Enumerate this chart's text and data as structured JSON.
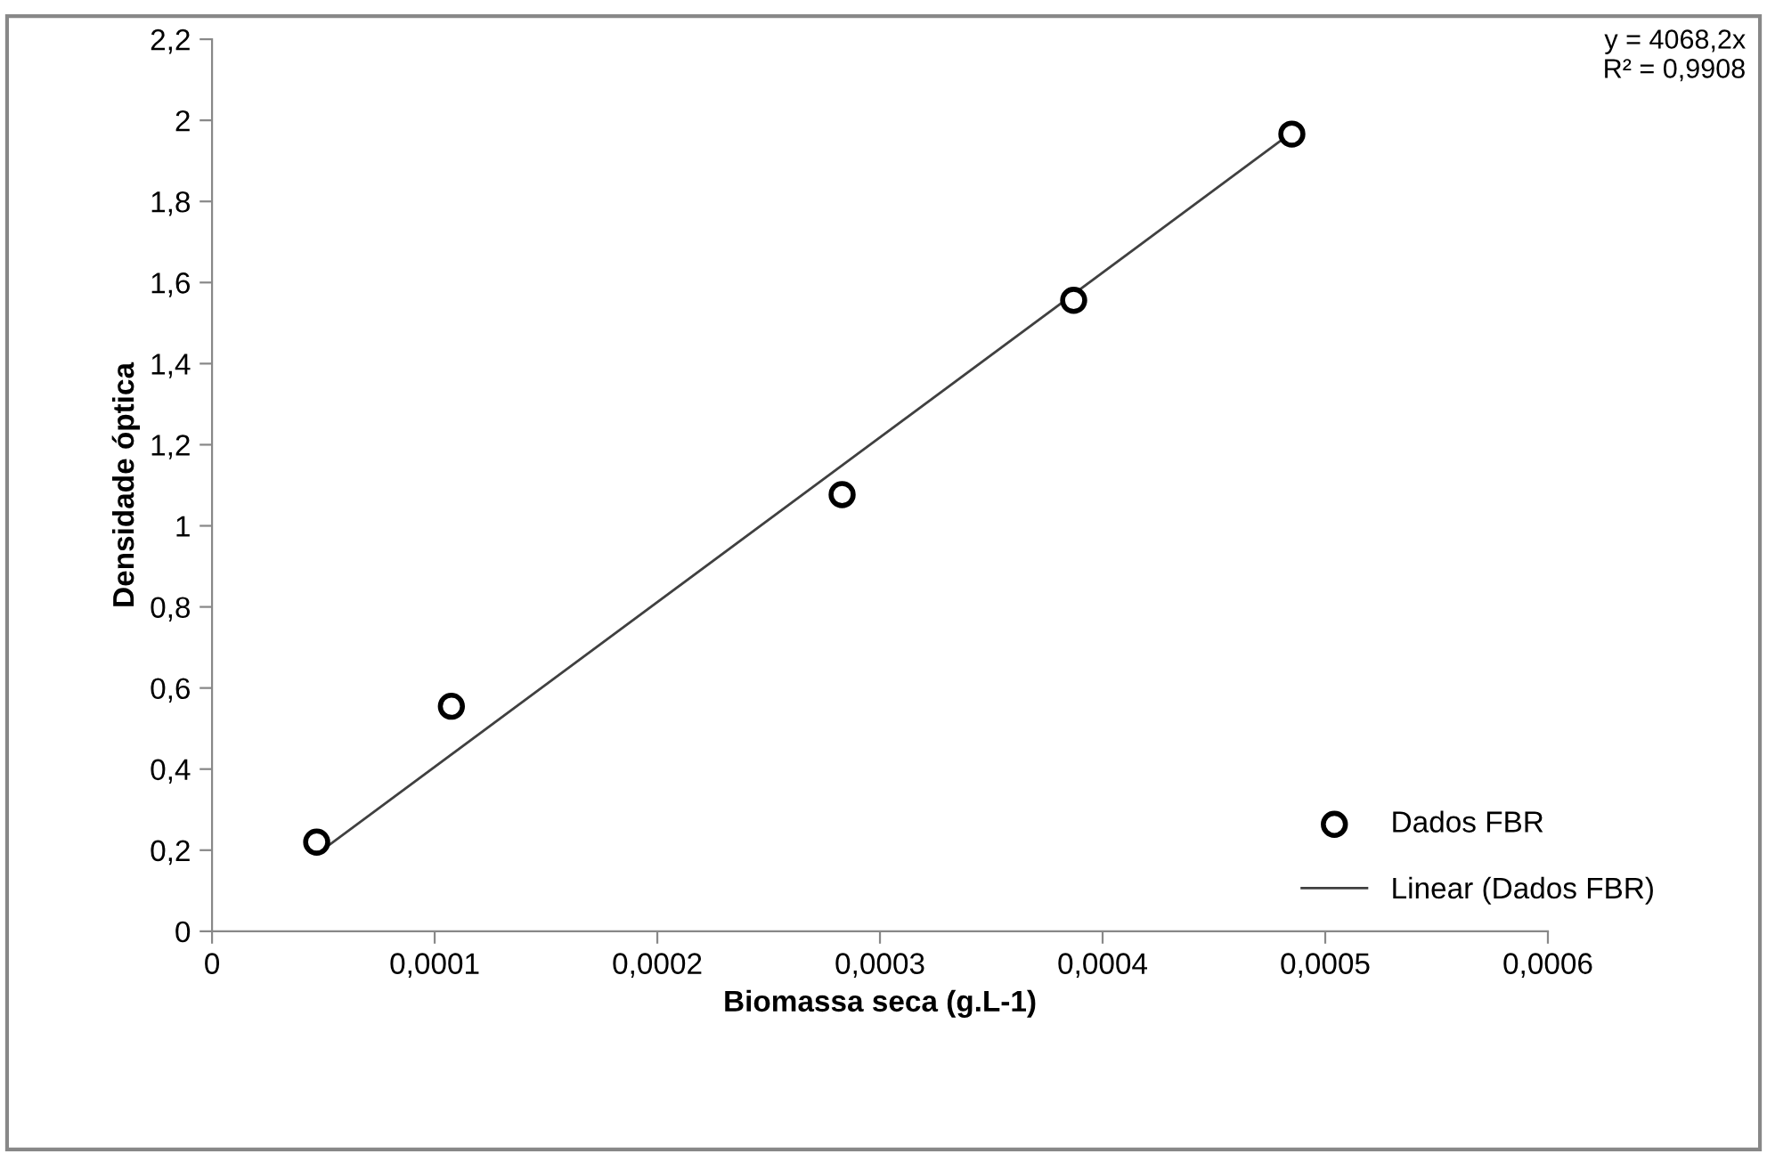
{
  "chart_data": {
    "type": "scatter",
    "xlabel": "Biomassa seca (g.L-1)",
    "ylabel": "Densidade óptica",
    "series": [
      {
        "name": "Dados FBR",
        "color": "#000000",
        "marker": "circle",
        "x": [
          4.7e-05,
          0.0001075,
          0.000283,
          0.000387,
          0.000485
        ],
        "values": [
          0.22,
          0.555,
          1.077,
          1.556,
          1.966
        ]
      },
      {
        "name": "Linear (Dados FBR)",
        "type": "line",
        "color": "#404040",
        "marker": "none",
        "line_style": "solid",
        "x": [
          4.7e-05,
          0.000485
        ],
        "values": [
          0.19,
          1.97
        ]
      }
    ],
    "xlim": [
      0,
      0.0006
    ],
    "xticks": [
      0,
      {
        "value": 0.0001,
        "label": "0,0001"
      },
      {
        "value": 0.0002,
        "label": "0,0002"
      },
      {
        "value": 0.0003,
        "label": "0,0003"
      },
      {
        "value": 0.0004,
        "label": "0,0004"
      },
      {
        "value": 0.0005,
        "label": "0,0005"
      },
      {
        "value": 0.0006,
        "label": "0,0006"
      }
    ],
    "ylim": [
      0,
      2.2
    ],
    "yticks": [
      0,
      {
        "value": 0.2,
        "label": "0,2"
      },
      {
        "value": 0.4,
        "label": "0,4"
      },
      {
        "value": 0.6,
        "label": "0,6"
      },
      {
        "value": 0.8,
        "label": "0,8"
      },
      1,
      {
        "value": 1.2,
        "label": "1,2"
      },
      {
        "value": 1.4,
        "label": "1,4"
      },
      {
        "value": 1.6,
        "label": "1,6"
      },
      {
        "value": 1.8,
        "label": "1,8"
      },
      2,
      {
        "value": 2.2,
        "label": "2,2"
      }
    ],
    "annotations": [
      "y = 4068,2x\nR² = 0,9908"
    ],
    "grid": false,
    "legend": "bottom right"
  }
}
